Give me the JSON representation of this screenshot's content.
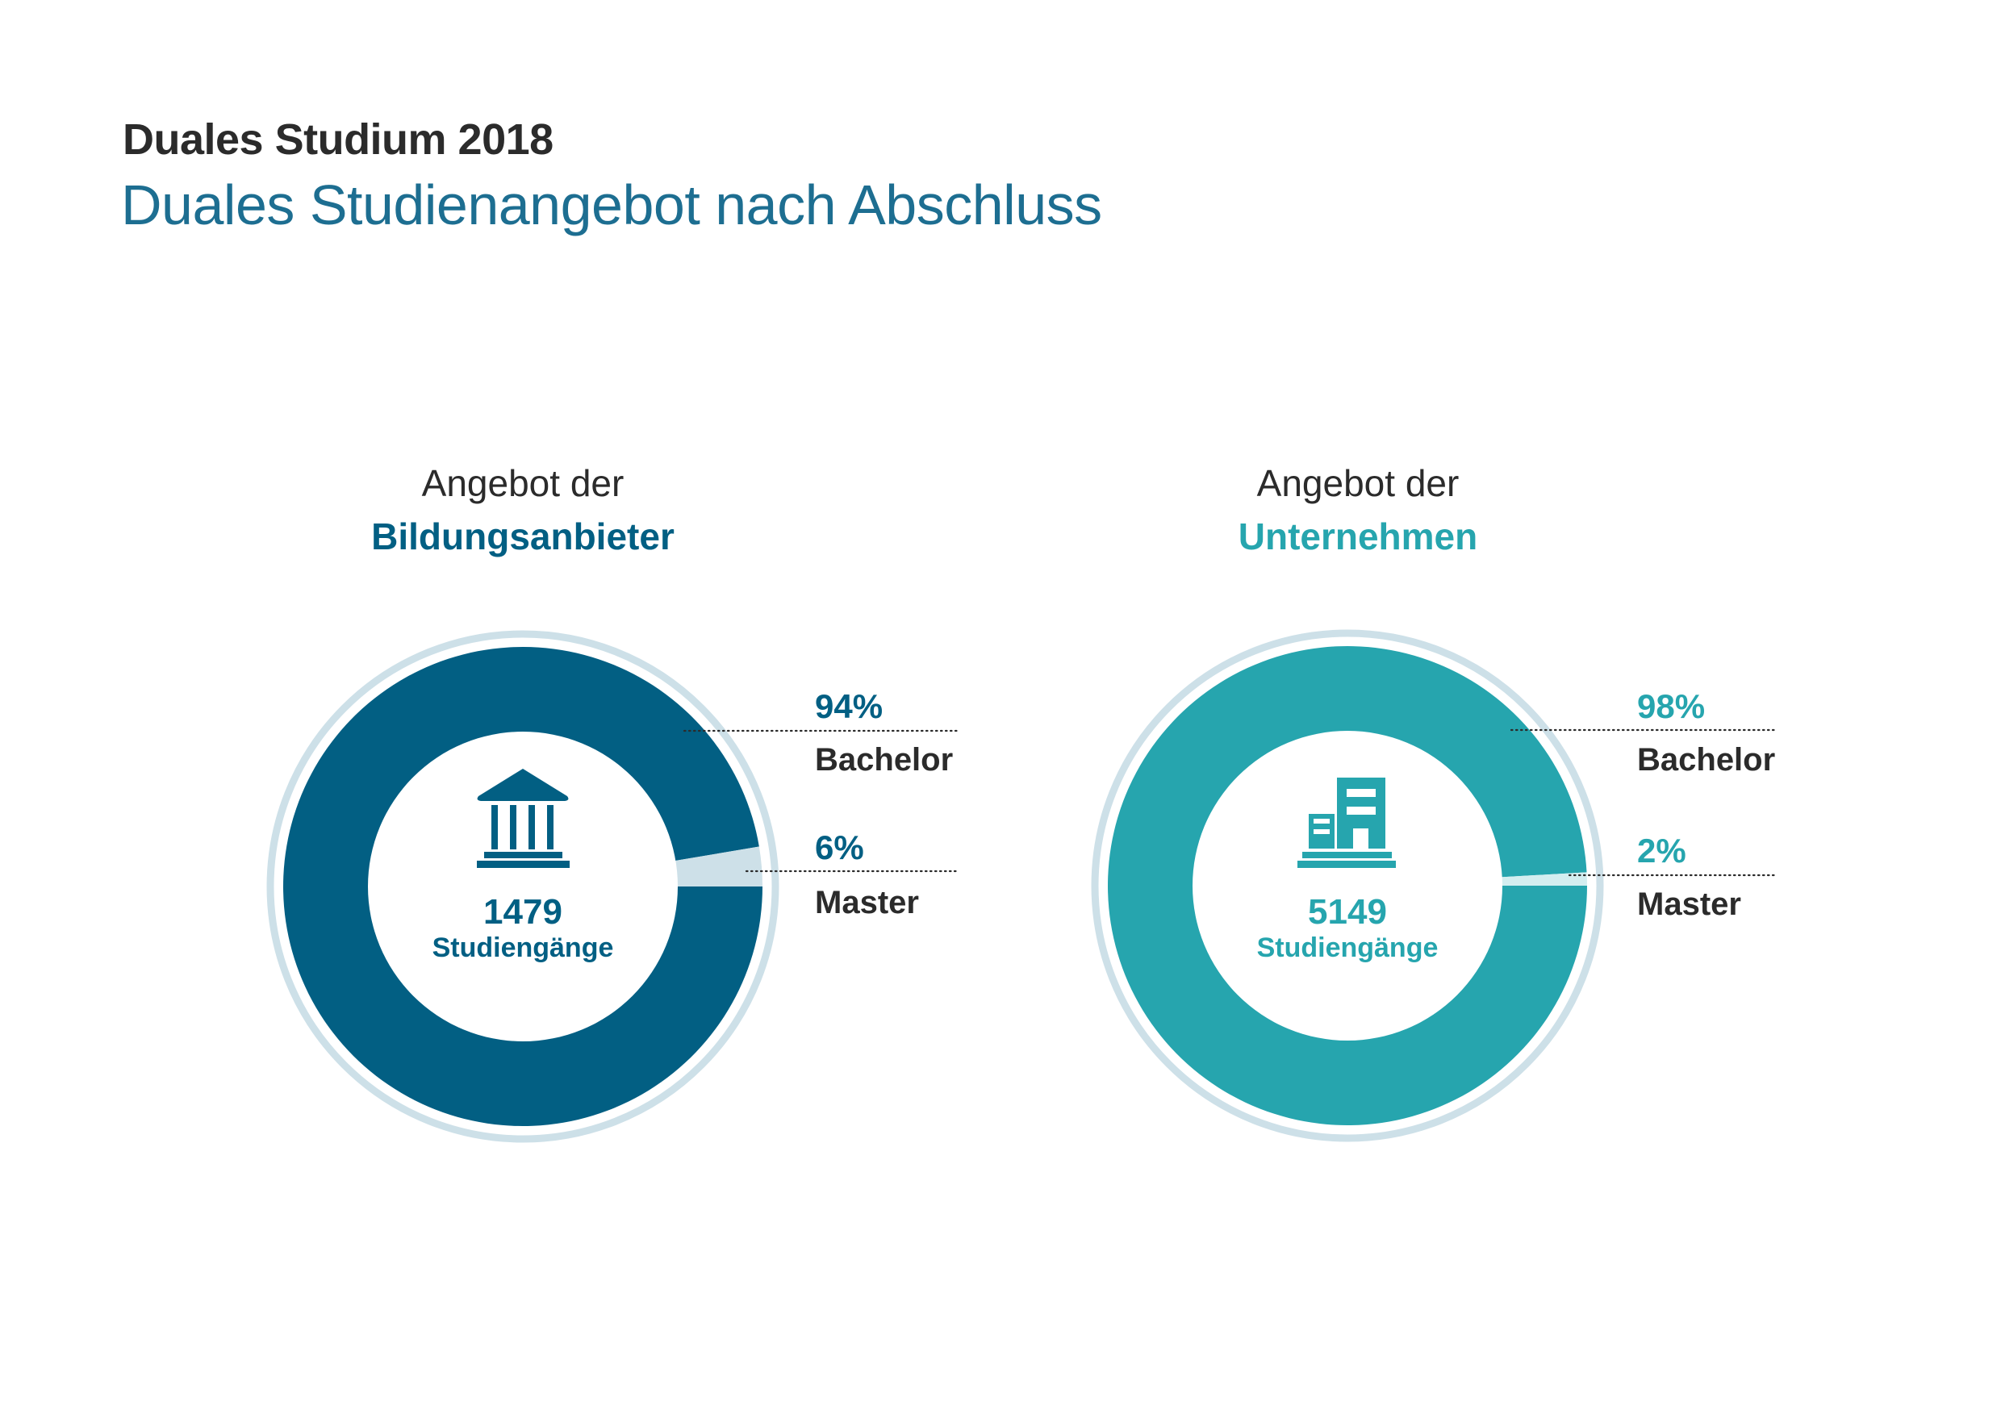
{
  "header": {
    "title": "Duales Studium 2018",
    "subtitle": "Duales Studienangebot nach Abschluss"
  },
  "colors": {
    "text_dark": "#2b2b2b",
    "subtitle": "#1d6e91",
    "ring_outline": "#cde0e8"
  },
  "chart_data": [
    {
      "type": "pie",
      "variant": "donut",
      "title_line1": "Angebot der",
      "title_line2": "Bildungsanbieter",
      "icon": "institution-building-icon",
      "total": "1479",
      "total_label": "Studiengänge",
      "accent": "#025f83",
      "minor_color": "#cde0e8",
      "slices": [
        {
          "label": "Bachelor",
          "value": 94,
          "display": "94%"
        },
        {
          "label": "Master",
          "value": 6,
          "display": "6%"
        }
      ],
      "legend_placement": "right"
    },
    {
      "type": "pie",
      "variant": "donut",
      "title_line1": "Angebot der",
      "title_line2": "Unternehmen",
      "icon": "office-building-icon",
      "total": "5149",
      "total_label": "Studiengänge",
      "accent": "#26a5ae",
      "minor_color": "#d3eef0",
      "slices": [
        {
          "label": "Bachelor",
          "value": 98,
          "display": "98%"
        },
        {
          "label": "Master",
          "value": 2,
          "display": "2%"
        }
      ],
      "legend_placement": "right"
    }
  ]
}
